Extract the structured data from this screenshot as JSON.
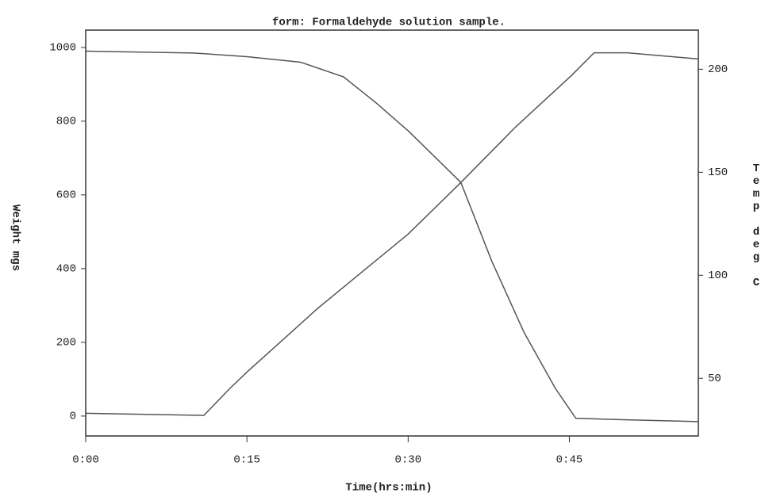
{
  "chart_data": {
    "type": "line",
    "title": "form: Formaldehyde solution sample.",
    "x_label": "Time(hrs:min)",
    "y_label": "Weight mgs",
    "y2_label": "Temp deg C",
    "xlim": [
      0,
      57
    ],
    "xticks": [
      {
        "value": 0,
        "label": "0:00"
      },
      {
        "value": 15,
        "label": "0:15"
      },
      {
        "value": 30,
        "label": "0:30"
      },
      {
        "value": 45,
        "label": "0:45"
      }
    ],
    "ylim": [
      -54,
      1047
    ],
    "yticks": [
      0,
      200,
      400,
      600,
      800,
      1000
    ],
    "y2lim": [
      22,
      219
    ],
    "y2ticks": [
      50,
      100,
      150,
      200
    ],
    "series": [
      {
        "color": "#555555",
        "x": [
          0,
          10,
          15,
          20,
          24,
          27,
          30,
          34.9,
          37.8,
          40.8,
          43.7,
          45.6,
          50,
          57
        ],
        "values": [
          990,
          985,
          975,
          960,
          920,
          850,
          774,
          634,
          419,
          226,
          75,
          -6,
          -10,
          -15
        ]
      },
      {
        "color": "#555555",
        "axis": "y2",
        "x": [
          0,
          11,
          13.4,
          15,
          21.6,
          30,
          34.9,
          40,
          45.2,
          47.3,
          50.4,
          57
        ],
        "values": [
          33,
          32,
          45,
          53,
          84,
          120,
          145,
          172,
          197,
          208,
          208,
          205
        ]
      }
    ]
  }
}
